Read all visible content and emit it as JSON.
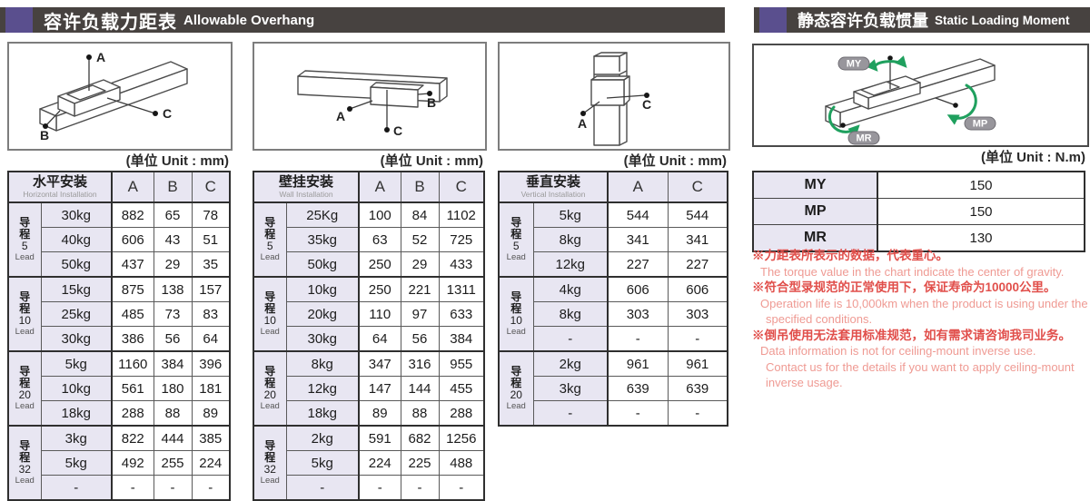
{
  "page": {
    "left_header": {
      "zh": "容许负载力距表",
      "en": "Allowable Overhang"
    },
    "right_header": {
      "zh": "静态容许负载惯量",
      "en": "Static Loading Moment"
    }
  },
  "units": {
    "mm": "(单位 Unit : mm)",
    "nm": "(单位 Unit : N.m)"
  },
  "lead": {
    "zh": "导程",
    "en": "Lead"
  },
  "tables": [
    {
      "title_zh": "水平安装",
      "title_en": "Horizontal Installation",
      "columns": [
        "A",
        "B",
        "C"
      ],
      "groups": [
        {
          "lead": "5",
          "rows": [
            [
              "30kg",
              "882",
              "65",
              "78"
            ],
            [
              "40kg",
              "606",
              "43",
              "51"
            ],
            [
              "50kg",
              "437",
              "29",
              "35"
            ]
          ]
        },
        {
          "lead": "10",
          "rows": [
            [
              "15kg",
              "875",
              "138",
              "157"
            ],
            [
              "25kg",
              "485",
              "73",
              "83"
            ],
            [
              "30kg",
              "386",
              "56",
              "64"
            ]
          ]
        },
        {
          "lead": "20",
          "rows": [
            [
              "5kg",
              "1160",
              "384",
              "396"
            ],
            [
              "10kg",
              "561",
              "180",
              "181"
            ],
            [
              "18kg",
              "288",
              "88",
              "89"
            ]
          ]
        },
        {
          "lead": "32",
          "rows": [
            [
              "3kg",
              "822",
              "444",
              "385"
            ],
            [
              "5kg",
              "492",
              "255",
              "224"
            ],
            [
              "-",
              "-",
              "-",
              "-"
            ]
          ]
        }
      ]
    },
    {
      "title_zh": "壁挂安装",
      "title_en": "Wall Installation",
      "columns": [
        "A",
        "B",
        "C"
      ],
      "groups": [
        {
          "lead": "5",
          "rows": [
            [
              "25Kg",
              "100",
              "84",
              "1102"
            ],
            [
              "35kg",
              "63",
              "52",
              "725"
            ],
            [
              "50kg",
              "250",
              "29",
              "433"
            ]
          ]
        },
        {
          "lead": "10",
          "rows": [
            [
              "10kg",
              "250",
              "221",
              "1311"
            ],
            [
              "20kg",
              "110",
              "97",
              "633"
            ],
            [
              "30kg",
              "64",
              "56",
              "384"
            ]
          ]
        },
        {
          "lead": "20",
          "rows": [
            [
              "8kg",
              "347",
              "316",
              "955"
            ],
            [
              "12kg",
              "147",
              "144",
              "455"
            ],
            [
              "18kg",
              "89",
              "88",
              "288"
            ]
          ]
        },
        {
          "lead": "32",
          "rows": [
            [
              "2kg",
              "591",
              "682",
              "1256"
            ],
            [
              "5kg",
              "224",
              "225",
              "488"
            ],
            [
              "-",
              "-",
              "-",
              "-"
            ]
          ]
        }
      ]
    },
    {
      "title_zh": "垂直安装",
      "title_en": "Vertical Installation",
      "columns": [
        "A",
        "C"
      ],
      "groups": [
        {
          "lead": "5",
          "rows": [
            [
              "5kg",
              "544",
              "544"
            ],
            [
              "8kg",
              "341",
              "341"
            ],
            [
              "12kg",
              "227",
              "227"
            ]
          ]
        },
        {
          "lead": "10",
          "rows": [
            [
              "4kg",
              "606",
              "606"
            ],
            [
              "8kg",
              "303",
              "303"
            ],
            [
              "-",
              "-",
              "-"
            ]
          ]
        },
        {
          "lead": "20",
          "rows": [
            [
              "2kg",
              "961",
              "961"
            ],
            [
              "3kg",
              "639",
              "639"
            ],
            [
              "-",
              "-",
              "-"
            ]
          ]
        }
      ]
    }
  ],
  "moment_table": {
    "rows": [
      [
        "MY",
        "150"
      ],
      [
        "MP",
        "150"
      ],
      [
        "MR",
        "130"
      ]
    ]
  },
  "notes": [
    {
      "style": "zh",
      "text": "※力距表所表示的数据，代表重心。"
    },
    {
      "style": "en",
      "text": "The torque value in the chart indicate the center of gravity."
    },
    {
      "style": "zh",
      "text": "※符合型录规范的正常使用下，保证寿命为10000公里。"
    },
    {
      "style": "en",
      "text": "Operation life is 10,000km when the product is using under the"
    },
    {
      "style": "en2",
      "text": "specified conditions."
    },
    {
      "style": "zh",
      "text": "※倒吊使用无法套用标准规范，如有需求请咨询我司业务。"
    },
    {
      "style": "en",
      "text": "Data information is not for ceiling-mount inverse use."
    },
    {
      "style": "en2",
      "text": "Contact us for the details if you want to apply ceiling-mount"
    },
    {
      "style": "en2",
      "text": "inverse usage."
    }
  ],
  "diagrams": {
    "horizontal": {
      "labels": [
        "A",
        "B",
        "C"
      ]
    },
    "wall": {
      "labels": [
        "A",
        "B",
        "C"
      ]
    },
    "vertical": {
      "labels": [
        "A",
        "C"
      ]
    },
    "moment": {
      "labels": [
        "MY",
        "MP",
        "MR"
      ]
    }
  },
  "colors": {
    "accent_purple": "#5a4f8e",
    "header_bar": "#474240",
    "cell_lavender": "#e8e6f2",
    "note_red": "#e14f4b",
    "note_salmon": "#ef9a93",
    "arrow_green": "#1fa05e"
  }
}
